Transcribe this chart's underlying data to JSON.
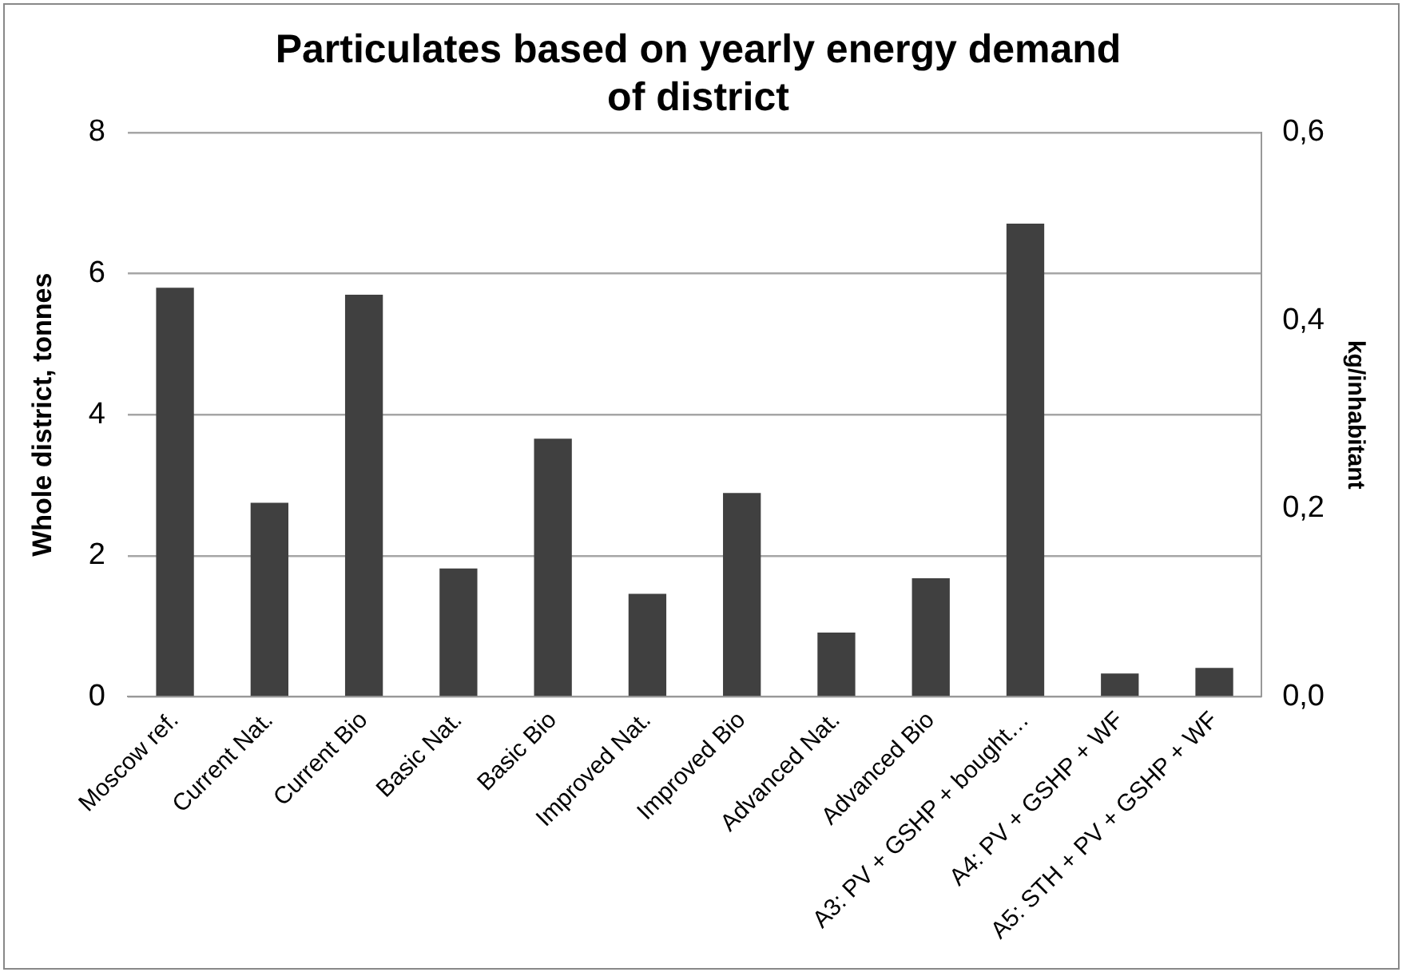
{
  "chart_data": {
    "type": "bar",
    "title": "Particulates based on yearly energy demand of district",
    "ylabel": "Whole district, tonnes",
    "y2label": "kg/inhabitant",
    "categories": [
      "Moscow ref.",
      "Current Nat.",
      "Current Bio",
      "Basic Nat.",
      "Basic Bio",
      "Improved Nat.",
      "Improved Bio",
      "Advanced Nat.",
      "Advanced Bio",
      "A3: PV + GSHP + bought…",
      "A4: PV + GSHP + WF",
      "A5: STH + PV + GSHP + WF"
    ],
    "values": [
      5.8,
      2.75,
      5.7,
      1.82,
      3.66,
      1.46,
      2.89,
      0.91,
      1.68,
      6.71,
      0.33,
      0.41
    ],
    "color": "#404040",
    "ylim": [
      0,
      8
    ],
    "yticks": [
      0,
      2,
      4,
      6,
      8
    ],
    "y2lim": [
      0,
      0.6
    ],
    "y2ticks": [
      {
        "value": 0,
        "label": "0,0"
      },
      {
        "value": 0.2,
        "label": "0,2"
      },
      {
        "value": 0.4,
        "label": "0,4"
      },
      {
        "value": 0.6,
        "label": "0,6"
      }
    ],
    "grid": "y",
    "legend": false
  }
}
